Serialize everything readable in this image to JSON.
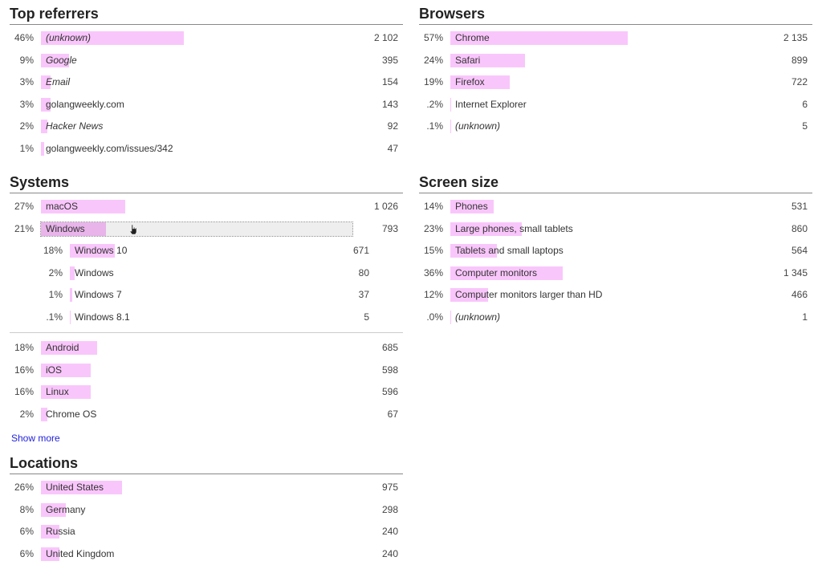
{
  "referrers": {
    "title": "Top referrers",
    "rows": [
      {
        "pct": "46%",
        "value": 46,
        "name": "(unknown)",
        "italic": true,
        "count": "2 102"
      },
      {
        "pct": "9%",
        "value": 9,
        "name": "Google",
        "italic": true,
        "count": "395"
      },
      {
        "pct": "3%",
        "value": 3,
        "name": "Email",
        "italic": true,
        "count": "154"
      },
      {
        "pct": "3%",
        "value": 3,
        "name": "golangweekly.com",
        "italic": false,
        "count": "143"
      },
      {
        "pct": "2%",
        "value": 2,
        "name": "Hacker News",
        "italic": true,
        "count": "92"
      },
      {
        "pct": "1%",
        "value": 1,
        "name": "golangweekly.com/issues/342",
        "italic": false,
        "count": "47"
      }
    ]
  },
  "browsers": {
    "title": "Browsers",
    "rows": [
      {
        "pct": "57%",
        "value": 57,
        "name": "Chrome",
        "italic": false,
        "count": "2 135"
      },
      {
        "pct": "24%",
        "value": 24,
        "name": "Safari",
        "italic": false,
        "count": "899"
      },
      {
        "pct": "19%",
        "value": 19,
        "name": "Firefox",
        "italic": false,
        "count": "722"
      },
      {
        "pct": ".2%",
        "value": 0.2,
        "name": "Internet Explorer",
        "italic": false,
        "count": "6"
      },
      {
        "pct": ".1%",
        "value": 0.1,
        "name": "(unknown)",
        "italic": true,
        "count": "5"
      }
    ]
  },
  "systems": {
    "title": "Systems",
    "rows": [
      {
        "pct": "27%",
        "value": 27,
        "name": "macOS",
        "italic": false,
        "count": "1 026"
      },
      {
        "pct": "21%",
        "value": 21,
        "name": "Windows",
        "italic": false,
        "count": "793",
        "hover": true
      }
    ],
    "sub_rows": [
      {
        "pct": "18%",
        "value": 18,
        "name": "Windows 10",
        "italic": false,
        "count": "671"
      },
      {
        "pct": "2%",
        "value": 2,
        "name": "Windows",
        "italic": false,
        "count": "80"
      },
      {
        "pct": "1%",
        "value": 1,
        "name": "Windows 7",
        "italic": false,
        "count": "37"
      },
      {
        "pct": ".1%",
        "value": 0.1,
        "name": "Windows 8.1",
        "italic": false,
        "count": "5"
      }
    ],
    "rows_after": [
      {
        "pct": "18%",
        "value": 18,
        "name": "Android",
        "italic": false,
        "count": "685"
      },
      {
        "pct": "16%",
        "value": 16,
        "name": "iOS",
        "italic": false,
        "count": "598"
      },
      {
        "pct": "16%",
        "value": 16,
        "name": "Linux",
        "italic": false,
        "count": "596"
      },
      {
        "pct": "2%",
        "value": 2,
        "name": "Chrome OS",
        "italic": false,
        "count": "67"
      }
    ],
    "show_more": "Show more"
  },
  "screen": {
    "title": "Screen size",
    "rows": [
      {
        "pct": "14%",
        "value": 14,
        "name": "Phones",
        "italic": false,
        "count": "531"
      },
      {
        "pct": "23%",
        "value": 23,
        "name": "Large phones, small tablets",
        "italic": false,
        "count": "860"
      },
      {
        "pct": "15%",
        "value": 15,
        "name": "Tablets and small laptops",
        "italic": false,
        "count": "564"
      },
      {
        "pct": "36%",
        "value": 36,
        "name": "Computer monitors",
        "italic": false,
        "count": "1 345"
      },
      {
        "pct": "12%",
        "value": 12,
        "name": "Computer monitors larger than HD",
        "italic": false,
        "count": "466"
      },
      {
        "pct": ".0%",
        "value": 0.02,
        "name": "(unknown)",
        "italic": true,
        "count": "1"
      }
    ]
  },
  "locations": {
    "title": "Locations",
    "rows": [
      {
        "pct": "26%",
        "value": 26,
        "name": "United States",
        "italic": false,
        "count": "975"
      },
      {
        "pct": "8%",
        "value": 8,
        "name": "Germany",
        "italic": false,
        "count": "298"
      },
      {
        "pct": "6%",
        "value": 6,
        "name": "Russia",
        "italic": false,
        "count": "240"
      },
      {
        "pct": "6%",
        "value": 6,
        "name": "United Kingdom",
        "italic": false,
        "count": "240"
      }
    ]
  }
}
